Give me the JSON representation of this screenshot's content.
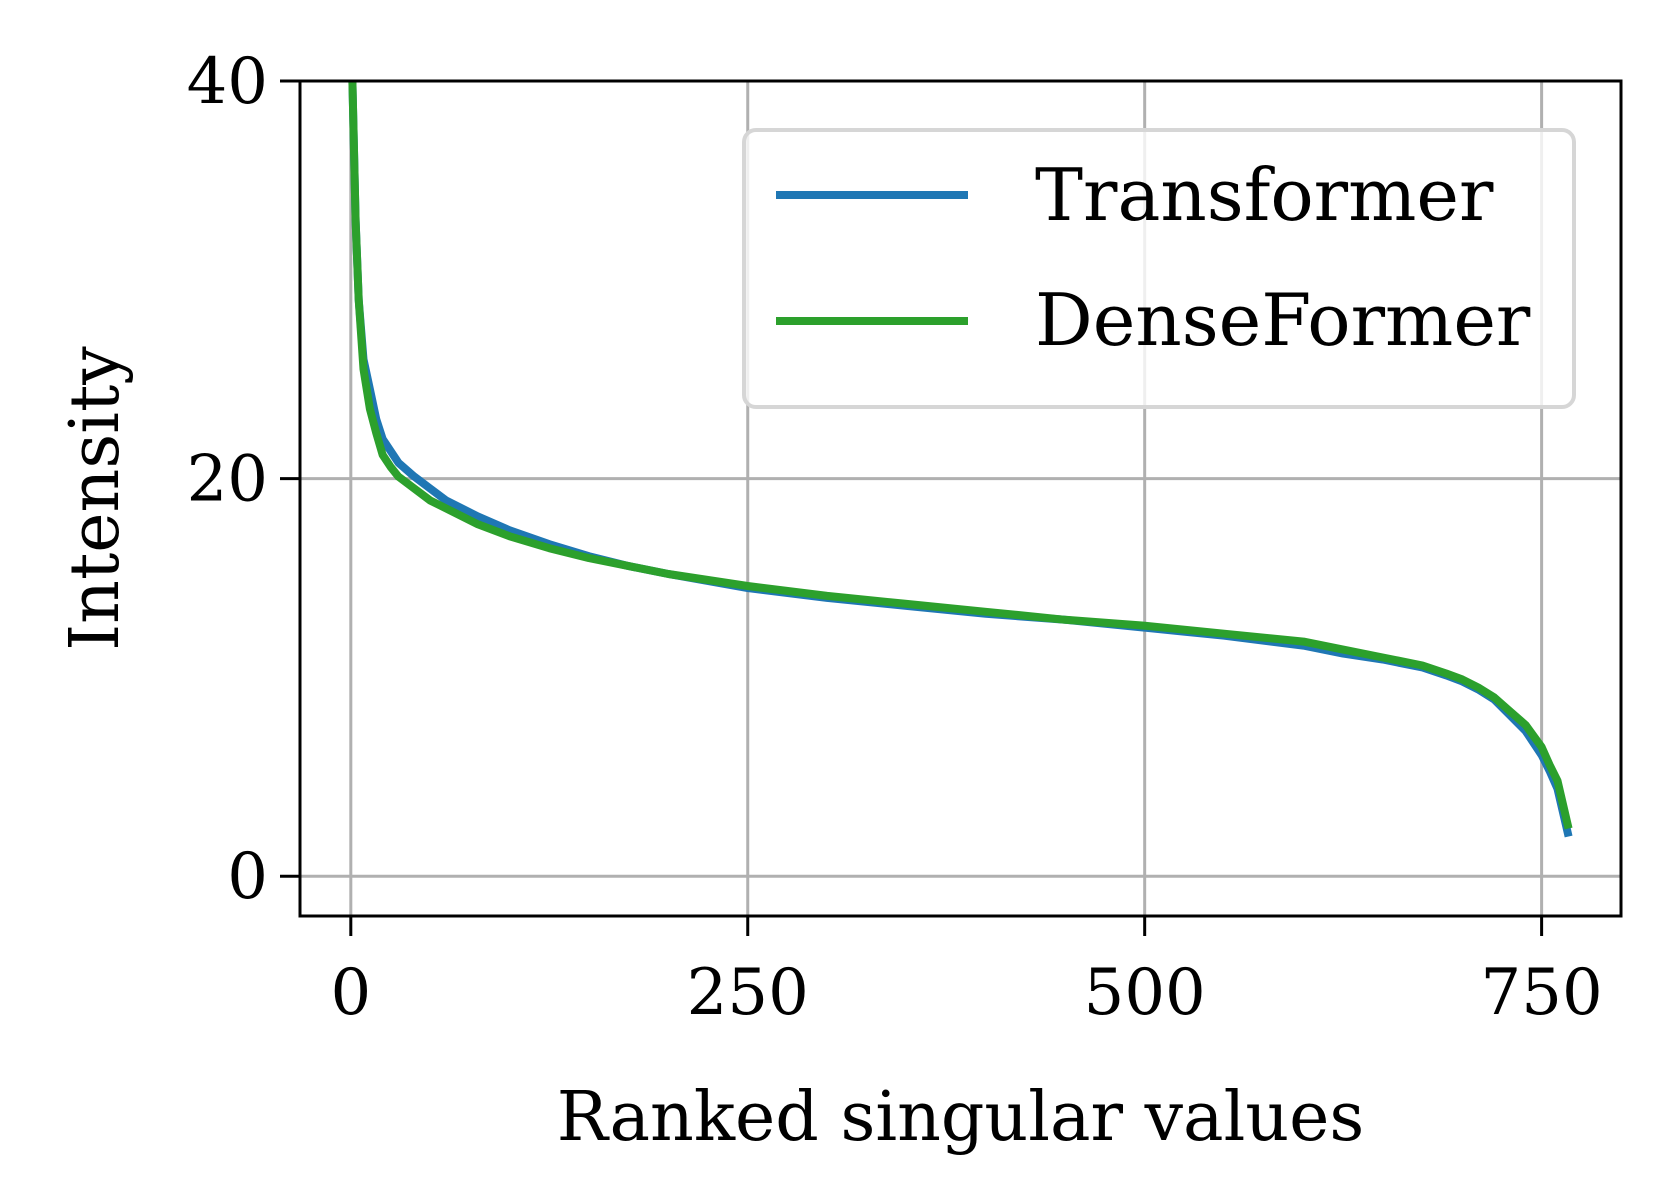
{
  "chart_data": {
    "type": "line",
    "title": "",
    "xlabel": "Ranked singular values",
    "ylabel": "Intensity",
    "xlim": [
      -32,
      800
    ],
    "ylim": [
      -2,
      40
    ],
    "xticks": [
      0,
      250,
      500,
      750
    ],
    "xtick_labels": [
      "0",
      "250",
      "500",
      "750"
    ],
    "yticks": [
      0,
      20,
      40
    ],
    "ytick_labels": [
      "0",
      "20",
      "40"
    ],
    "grid": true,
    "legend": {
      "placement": "top-right"
    },
    "series": [
      {
        "name": "Transformer",
        "color": "#1f77b4",
        "x": [
          1,
          3,
          5,
          8,
          12,
          16,
          20,
          25,
          30,
          40,
          50,
          60,
          80,
          100,
          125,
          150,
          175,
          200,
          250,
          300,
          350,
          400,
          450,
          500,
          550,
          600,
          625,
          650,
          675,
          690,
          700,
          710,
          720,
          730,
          740,
          750,
          755,
          760,
          767
        ],
        "y": [
          40,
          33,
          29,
          26,
          24.5,
          23,
          22,
          21.4,
          20.8,
          20.1,
          19.5,
          18.9,
          18.1,
          17.4,
          16.7,
          16.1,
          15.6,
          15.2,
          14.5,
          14.0,
          13.6,
          13.2,
          12.9,
          12.5,
          12.1,
          11.6,
          11.2,
          10.9,
          10.5,
          10.1,
          9.8,
          9.4,
          8.9,
          8.1,
          7.3,
          6.1,
          5.3,
          4.4,
          2.0
        ]
      },
      {
        "name": "DenseFormer",
        "color": "#2ca02c",
        "x": [
          1,
          3,
          5,
          8,
          12,
          16,
          20,
          25,
          30,
          40,
          50,
          60,
          80,
          100,
          125,
          150,
          175,
          200,
          250,
          300,
          350,
          400,
          450,
          500,
          550,
          600,
          625,
          650,
          675,
          690,
          700,
          710,
          720,
          730,
          740,
          750,
          755,
          760,
          767
        ],
        "y": [
          40,
          33,
          29,
          25.5,
          23.5,
          22.3,
          21.2,
          20.6,
          20.1,
          19.5,
          18.9,
          18.5,
          17.7,
          17.1,
          16.5,
          16.0,
          15.6,
          15.2,
          14.6,
          14.1,
          13.7,
          13.3,
          12.9,
          12.6,
          12.2,
          11.8,
          11.4,
          11.0,
          10.6,
          10.2,
          9.9,
          9.5,
          9.0,
          8.3,
          7.6,
          6.5,
          5.6,
          4.8,
          2.4
        ]
      }
    ]
  }
}
